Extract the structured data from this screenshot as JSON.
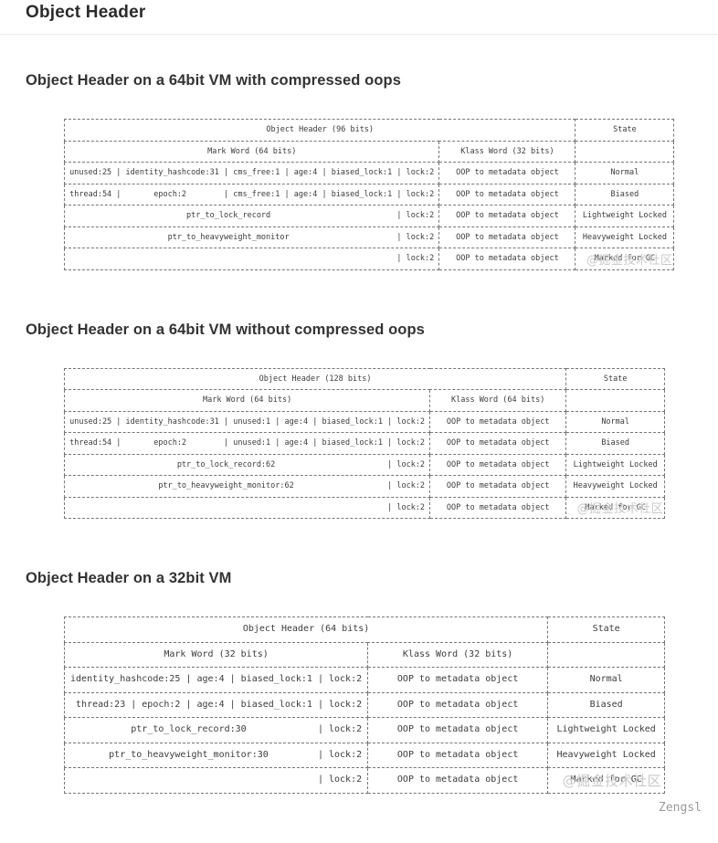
{
  "page": {
    "title": "Object Header",
    "watermark": "@掘金技术社区",
    "footer_credit": "Zengsl",
    "colors": {
      "heading_text": "#2b2b2b",
      "table_text": "#3b3b3b",
      "table_border": "#767676",
      "watermark_gray": "#c9c9c9",
      "credit_gray": "#999999",
      "rule_gray": "#ececec"
    }
  },
  "sections": [
    {
      "heading": "Object Header on a 64bit VM with compressed oops",
      "table": {
        "header": "Object Header (96 bits)",
        "state_header": "State",
        "mark_header": "Mark Word (64 bits)",
        "klass_header": "Klass Word (32 bits)",
        "rows": [
          {
            "mark": " unused:25 | identity_hashcode:31 | cms_free:1 | age:4 | biased_lock:1 | lock:2 ",
            "klass": "OOP to metadata object",
            "state": "Normal"
          },
          {
            "mark": " thread:54 |       epoch:2        | cms_free:1 | age:4 | biased_lock:1 | lock:2 ",
            "klass": "OOP to metadata object",
            "state": "Biased"
          },
          {
            "mark": "                          ptr_to_lock_record                           | lock:2 ",
            "klass": "OOP to metadata object",
            "state": "Lightweight Locked"
          },
          {
            "mark": "                      ptr_to_heavyweight_monitor                       | lock:2 ",
            "klass": "OOP to metadata object",
            "state": "Heavyweight Locked"
          },
          {
            "mark": "                                                                       | lock:2 ",
            "klass": "OOP to metadata object",
            "state": "Marked for GC"
          }
        ]
      }
    },
    {
      "heading": "Object Header on a 64bit VM without compressed oops",
      "table": {
        "header": "Object Header (128 bits)",
        "state_header": "State",
        "mark_header": "Mark Word (64 bits)",
        "klass_header": "Klass Word (64 bits)",
        "rows": [
          {
            "mark": " unused:25 | identity_hashcode:31 | unused:1 | age:4 | biased_lock:1 | lock:2 ",
            "klass": "OOP to metadata object",
            "state": "Normal"
          },
          {
            "mark": " thread:54 |       epoch:2        | unused:1 | age:4 | biased_lock:1 | lock:2 ",
            "klass": "OOP to metadata object",
            "state": "Biased"
          },
          {
            "mark": "                        ptr_to_lock_record:62                        | lock:2 ",
            "klass": "OOP to metadata object",
            "state": "Lightweight Locked"
          },
          {
            "mark": "                    ptr_to_heavyweight_monitor:62                    | lock:2 ",
            "klass": "OOP to metadata object",
            "state": "Heavyweight Locked"
          },
          {
            "mark": "                                                                     | lock:2 ",
            "klass": "OOP to metadata object",
            "state": "Marked for GC"
          }
        ]
      }
    },
    {
      "heading": "Object Header on a 32bit VM",
      "table": {
        "header": "Object Header (64 bits)",
        "state_header": "State",
        "mark_header": "Mark Word (32 bits)",
        "klass_header": "Klass Word (32 bits)",
        "rows": [
          {
            "mark": " identity_hashcode:25 | age:4 | biased_lock:1 | lock:2 ",
            "klass": "OOP to metadata object",
            "state": "Normal"
          },
          {
            "mark": "  thread:23 | epoch:2 | age:4 | biased_lock:1 | lock:2 ",
            "klass": "OOP to metadata object",
            "state": "Biased"
          },
          {
            "mark": "            ptr_to_lock_record:30             | lock:2 ",
            "klass": "OOP to metadata object",
            "state": "Lightweight Locked"
          },
          {
            "mark": "        ptr_to_heavyweight_monitor:30         | lock:2 ",
            "klass": "OOP to metadata object",
            "state": "Heavyweight Locked"
          },
          {
            "mark": "                                              | lock:2 ",
            "klass": "OOP to metadata object",
            "state": "Marked for GC"
          }
        ]
      }
    }
  ]
}
